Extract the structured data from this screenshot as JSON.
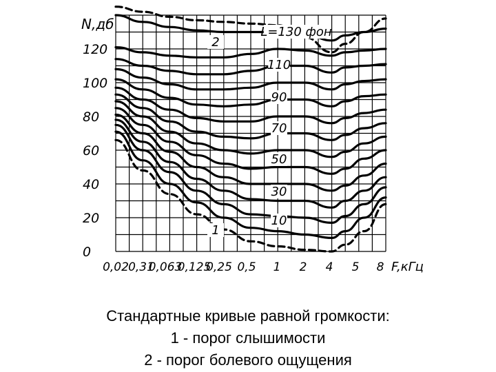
{
  "chart_data": {
    "type": "line",
    "ylabel": "N,дб",
    "xlabel": "F,кГц",
    "x_ticks": [
      "0,02",
      "0,31",
      "0,063",
      "0,125",
      "0,25",
      "0,5",
      "1",
      "2",
      "4",
      "5",
      "8"
    ],
    "y_ticks": [
      "0",
      "20",
      "40",
      "60",
      "80",
      "100",
      "120"
    ],
    "ylim": [
      0,
      140
    ],
    "grid": true,
    "curve_labels": [
      "L=130 фон",
      "110",
      "90",
      "70",
      "50",
      "30",
      "10",
      "1",
      "2"
    ],
    "series": [
      {
        "name": "1",
        "style": "dashed",
        "values": [
          66,
          48,
          34,
          22,
          13,
          6,
          3,
          1,
          0,
          4,
          12,
          28
        ]
      },
      {
        "name": "10",
        "style": "solid",
        "values": [
          71,
          54,
          40,
          29,
          20,
          14,
          12,
          10,
          8,
          12,
          20,
          32
        ]
      },
      {
        "name": "20",
        "style": "solid",
        "values": [
          75,
          60,
          47,
          36,
          28,
          22,
          21,
          20,
          17,
          21,
          28,
          38
        ]
      },
      {
        "name": "30",
        "style": "solid",
        "values": [
          78,
          65,
          53,
          43,
          36,
          31,
          30,
          30,
          26,
          30,
          36,
          44
        ]
      },
      {
        "name": "40",
        "style": "solid",
        "values": [
          81,
          70,
          59,
          50,
          44,
          40,
          40,
          40,
          36,
          39,
          45,
          52
        ]
      },
      {
        "name": "50",
        "style": "solid",
        "values": [
          85,
          75,
          65,
          57,
          52,
          49,
          50,
          50,
          46,
          49,
          55,
          60
        ]
      },
      {
        "name": "60",
        "style": "solid",
        "values": [
          89,
          80,
          71,
          64,
          60,
          58,
          60,
          60,
          56,
          59,
          64,
          68
        ]
      },
      {
        "name": "70",
        "style": "solid",
        "values": [
          93,
          85,
          77,
          71,
          68,
          67,
          70,
          70,
          66,
          69,
          73,
          76
        ]
      },
      {
        "name": "80",
        "style": "solid",
        "values": [
          97,
          90,
          84,
          79,
          77,
          77,
          80,
          80,
          76,
          79,
          82,
          84
        ]
      },
      {
        "name": "90",
        "style": "solid",
        "values": [
          102,
          96,
          91,
          87,
          86,
          87,
          90,
          90,
          86,
          89,
          92,
          93
        ]
      },
      {
        "name": "100",
        "style": "solid",
        "values": [
          108,
          103,
          99,
          96,
          96,
          97,
          100,
          100,
          96,
          99,
          101,
          102
        ]
      },
      {
        "name": "110",
        "style": "solid",
        "values": [
          114,
          110,
          107,
          105,
          105,
          107,
          110,
          110,
          106,
          109,
          110,
          111
        ]
      },
      {
        "name": "120",
        "style": "solid",
        "values": [
          121,
          118,
          116,
          115,
          115,
          117,
          120,
          119,
          116,
          118,
          119,
          120
        ]
      },
      {
        "name": "130",
        "style": "solid",
        "values": [
          140,
          136,
          133,
          131,
          130,
          130,
          130,
          129,
          125,
          128,
          130,
          132
        ]
      },
      {
        "name": "2",
        "style": "dashed",
        "values": [
          145,
          142,
          139,
          137,
          136,
          135,
          134,
          127,
          118,
          123,
          130,
          138
        ]
      }
    ],
    "x_positions": [
      0,
      1,
      2,
      3,
      4,
      5,
      6,
      7,
      8,
      8.5,
      9.2,
      10
    ]
  },
  "caption": {
    "line1": "Стандартные кривые равной громкости:",
    "line2": "1 - порог слышимости",
    "line3": "2 - порог болевого ощущения"
  }
}
